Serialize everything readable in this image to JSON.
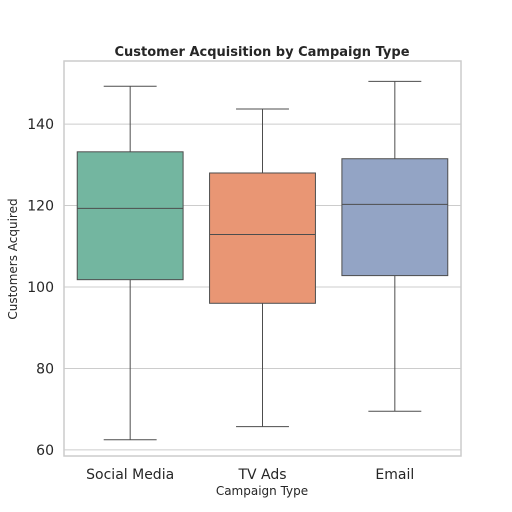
{
  "chart_data": {
    "type": "box",
    "title": "Customer Acquisition by Campaign Type",
    "xlabel": "Campaign Type",
    "ylabel": "Customers Acquired",
    "ylim": [
      58.5,
      155.5
    ],
    "yticks": [
      60,
      80,
      100,
      120,
      140
    ],
    "grid": true,
    "categories": [
      "Social Media",
      "TV Ads",
      "Email"
    ],
    "boxes": [
      {
        "category": "Social Media",
        "min": 62.5,
        "q1": 101.8,
        "median": 119.3,
        "q3": 133.2,
        "max": 149.3,
        "color": "#73b6a0"
      },
      {
        "category": "TV Ads",
        "min": 65.7,
        "q1": 96.0,
        "median": 112.9,
        "q3": 128.0,
        "max": 143.7,
        "color": "#e99674"
      },
      {
        "category": "Email",
        "min": 69.5,
        "q1": 102.8,
        "median": 120.3,
        "q3": 131.5,
        "max": 150.5,
        "color": "#93a4c5"
      }
    ]
  }
}
